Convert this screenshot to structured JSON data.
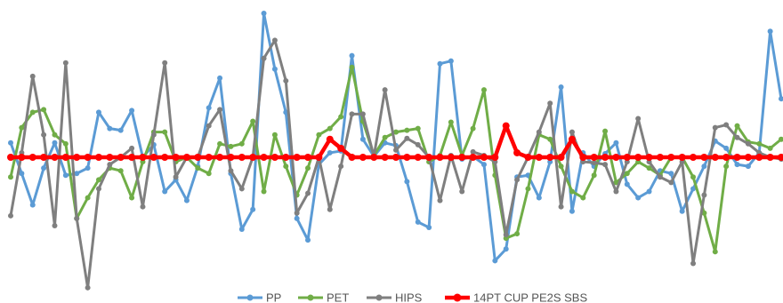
{
  "chart_data": {
    "type": "line",
    "title": "",
    "xlabel": "",
    "ylabel": "",
    "ylim": [
      -1.6,
      1.6
    ],
    "grid": false,
    "legend_placement": "bottom",
    "x": [
      1,
      2,
      3,
      4,
      5,
      6,
      7,
      8,
      9,
      10,
      11,
      12,
      13,
      14,
      15,
      16,
      17,
      18,
      19,
      20,
      21,
      22,
      23,
      24,
      25,
      26,
      27,
      28,
      29,
      30,
      31,
      32,
      33,
      34,
      35,
      36,
      37,
      38,
      39,
      40,
      41,
      42,
      43,
      44,
      45,
      46,
      47,
      48,
      49,
      50,
      51,
      52,
      53,
      54,
      55,
      56,
      57,
      58,
      59,
      60,
      61,
      62,
      63,
      64,
      65,
      66,
      67,
      68,
      69,
      70,
      71
    ],
    "series": [
      {
        "name": "PP",
        "color": "#5B9BD5",
        "line_width": 3,
        "marker_size": 3,
        "values": [
          0.16,
          -0.18,
          -0.53,
          -0.12,
          0.16,
          -0.2,
          -0.18,
          -0.12,
          0.5,
          0.32,
          0.3,
          0.52,
          0.0,
          0.14,
          -0.38,
          -0.25,
          -0.48,
          -0.1,
          0.55,
          0.88,
          -0.18,
          -0.8,
          -0.58,
          1.6,
          0.98,
          0.5,
          -0.68,
          -0.92,
          -0.08,
          0.05,
          0.07,
          1.13,
          0.2,
          0.01,
          0.16,
          0.13,
          -0.27,
          -0.72,
          -0.78,
          1.04,
          1.07,
          -0.02,
          0.01,
          -0.08,
          -1.15,
          -1.02,
          -0.22,
          -0.2,
          -0.45,
          -0.05,
          0.78,
          -0.6,
          0.05,
          -0.1,
          0.04,
          0.16,
          -0.3,
          -0.45,
          -0.38,
          -0.15,
          -0.18,
          -0.6,
          -0.35,
          -0.1,
          0.18,
          0.1,
          -0.08,
          -0.1,
          0.05,
          1.4,
          0.65
        ]
      },
      {
        "name": "PET",
        "color": "#70AD47",
        "line_width": 3,
        "marker_size": 3,
        "values": [
          -0.22,
          0.33,
          0.5,
          0.53,
          0.25,
          0.15,
          -0.68,
          -0.45,
          -0.25,
          -0.12,
          -0.15,
          -0.45,
          -0.05,
          0.28,
          0.28,
          -0.05,
          0.0,
          -0.12,
          -0.18,
          0.15,
          0.12,
          0.15,
          0.4,
          -0.38,
          0.25,
          -0.1,
          -0.42,
          -0.12,
          0.25,
          0.32,
          0.45,
          1.0,
          0.4,
          0.02,
          0.22,
          0.28,
          0.3,
          0.32,
          -0.05,
          0.02,
          0.39,
          0.02,
          0.32,
          0.75,
          -0.2,
          -0.9,
          -0.85,
          -0.35,
          0.25,
          0.2,
          -0.1,
          -0.38,
          -0.45,
          -0.2,
          0.29,
          -0.28,
          -0.18,
          -0.05,
          -0.12,
          -0.2,
          0.0,
          0.0,
          -0.22,
          -0.62,
          -1.05,
          -0.1,
          0.35,
          0.17,
          0.15,
          0.1,
          0.2
        ]
      },
      {
        "name": "HIPS",
        "color": "#7F7F7F",
        "line_width": 3,
        "marker_size": 3,
        "values": [
          -0.65,
          0.05,
          0.9,
          0.25,
          -0.76,
          1.05,
          -0.68,
          -1.45,
          -0.35,
          -0.08,
          0.0,
          0.1,
          -0.55,
          0.25,
          1.05,
          -0.22,
          0.0,
          0.0,
          0.35,
          0.53,
          -0.15,
          -0.35,
          0.0,
          1.1,
          1.3,
          0.85,
          -0.62,
          -0.4,
          0.0,
          -0.58,
          -0.1,
          0.48,
          0.48,
          0.01,
          0.75,
          0.08,
          0.21,
          0.14,
          0.0,
          -0.48,
          0.02,
          -0.38,
          0.06,
          0.02,
          -0.05,
          -0.86,
          -0.25,
          0.0,
          0.28,
          0.6,
          -0.55,
          0.28,
          -0.05,
          -0.06,
          -0.08,
          -0.38,
          -0.05,
          0.43,
          -0.05,
          -0.22,
          -0.28,
          -0.05,
          -1.18,
          -0.42,
          0.33,
          0.36,
          0.22,
          0.15,
          0.05,
          0.0,
          -0.02
        ]
      },
      {
        "name": "14PT CUP PE2S SBS",
        "color": "#FF0000",
        "line_width": 4.5,
        "marker_size": 4,
        "values": [
          0.0,
          0.0,
          0.0,
          0.0,
          0.0,
          0.0,
          0.0,
          0.0,
          0.0,
          0.0,
          0.0,
          0.0,
          0.0,
          0.0,
          0.0,
          0.0,
          0.0,
          0.0,
          0.0,
          0.0,
          0.0,
          0.0,
          0.0,
          0.0,
          0.0,
          0.0,
          0.0,
          0.0,
          0.0,
          0.2,
          0.1,
          0.0,
          0.0,
          0.0,
          0.0,
          0.0,
          0.0,
          0.0,
          0.0,
          0.0,
          0.0,
          0.0,
          0.0,
          0.0,
          0.0,
          0.35,
          0.05,
          0.0,
          0.0,
          0.0,
          0.0,
          0.2,
          0.0,
          0.0,
          0.0,
          0.0,
          0.0,
          0.0,
          0.0,
          0.0,
          0.0,
          0.0,
          0.0,
          0.0,
          0.0,
          0.0,
          0.0,
          0.0,
          0.0,
          0.0,
          0.0
        ]
      }
    ]
  }
}
